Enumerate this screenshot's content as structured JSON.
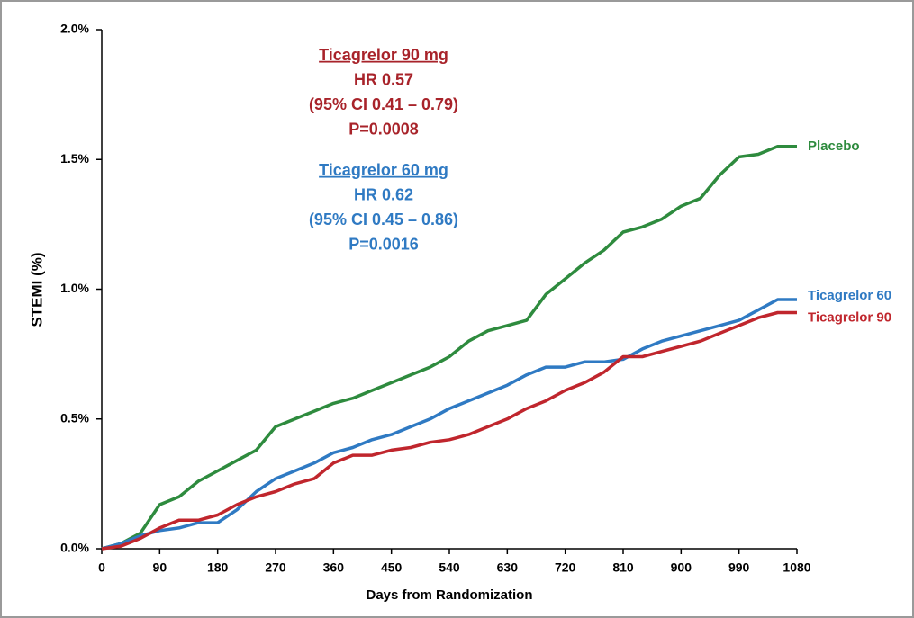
{
  "chart_data": {
    "type": "line",
    "x_label": "Days from Randomization",
    "y_label": "STEMI (%)",
    "x": [
      0,
      30,
      60,
      90,
      120,
      150,
      180,
      210,
      240,
      270,
      300,
      330,
      360,
      390,
      420,
      450,
      480,
      510,
      540,
      570,
      600,
      630,
      660,
      690,
      720,
      750,
      780,
      810,
      840,
      870,
      900,
      930,
      960,
      990,
      1020,
      1050,
      1080
    ],
    "series": [
      {
        "name": "Placebo",
        "color": "#2e8b3e",
        "values": [
          0,
          0.02,
          0.06,
          0.17,
          0.2,
          0.26,
          0.3,
          0.34,
          0.38,
          0.47,
          0.5,
          0.53,
          0.56,
          0.58,
          0.61,
          0.64,
          0.67,
          0.7,
          0.74,
          0.8,
          0.84,
          0.86,
          0.88,
          0.98,
          1.04,
          1.1,
          1.15,
          1.22,
          1.24,
          1.27,
          1.32,
          1.35,
          1.44,
          1.51,
          1.52,
          1.55,
          1.55
        ]
      },
      {
        "name": "Ticagrelor 60",
        "color": "#2f7ac3",
        "values": [
          0,
          0.02,
          0.05,
          0.07,
          0.08,
          0.1,
          0.1,
          0.15,
          0.22,
          0.27,
          0.3,
          0.33,
          0.37,
          0.39,
          0.42,
          0.44,
          0.47,
          0.5,
          0.54,
          0.57,
          0.6,
          0.63,
          0.67,
          0.7,
          0.7,
          0.72,
          0.72,
          0.73,
          0.77,
          0.8,
          0.82,
          0.84,
          0.86,
          0.88,
          0.92,
          0.96,
          0.96
        ]
      },
      {
        "name": "Ticagrelor 90",
        "color": "#c0262d",
        "values": [
          0,
          0.01,
          0.04,
          0.08,
          0.11,
          0.11,
          0.13,
          0.17,
          0.2,
          0.22,
          0.25,
          0.27,
          0.33,
          0.36,
          0.36,
          0.38,
          0.39,
          0.41,
          0.42,
          0.44,
          0.47,
          0.5,
          0.54,
          0.57,
          0.61,
          0.64,
          0.68,
          0.74,
          0.74,
          0.76,
          0.78,
          0.8,
          0.83,
          0.86,
          0.89,
          0.91,
          0.91
        ]
      }
    ],
    "xlim": [
      0,
      1080
    ],
    "xticks": [
      0,
      90,
      180,
      270,
      360,
      450,
      540,
      630,
      720,
      810,
      900,
      990,
      1080
    ],
    "ylim": [
      0,
      2
    ],
    "yticks": [
      {
        "value": 0,
        "label": "0.0%"
      },
      {
        "value": 0.5,
        "label": "0.5%"
      },
      {
        "value": 1,
        "label": "1.0%"
      },
      {
        "value": 1.5,
        "label": "1.5%"
      },
      {
        "value": 2,
        "label": "2.0%"
      }
    ],
    "grid": false,
    "annotations": [
      {
        "color": "#a8232a",
        "lines": [
          "Ticagrelor 90 mg",
          "HR 0.57",
          "(95% CI 0.41 – 0.79)",
          "P=0.0008"
        ]
      },
      {
        "color": "#2f7ac3",
        "lines": [
          "Ticagrelor 60 mg",
          "HR 0.62",
          "(95% CI 0.45 – 0.86)",
          "P=0.0016"
        ]
      }
    ]
  }
}
